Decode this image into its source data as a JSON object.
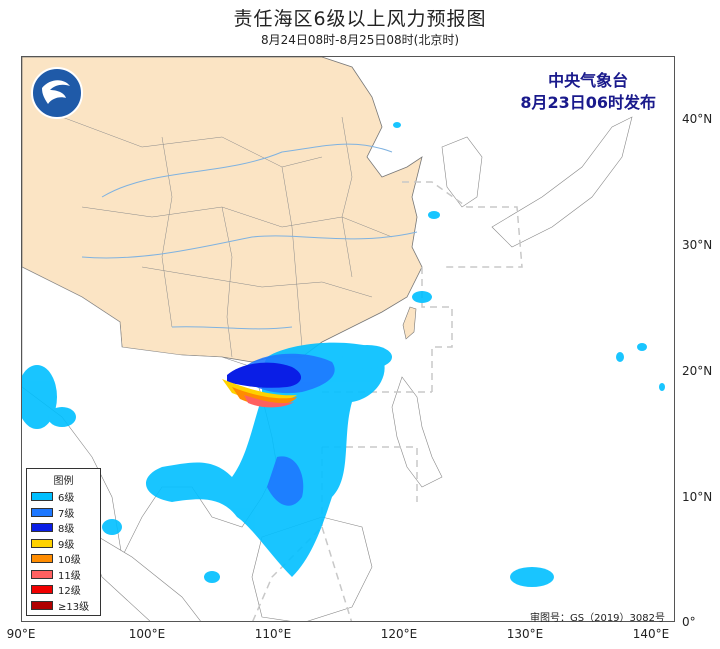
{
  "header": {
    "title": "责任海区6级以上风力预报图",
    "subtitle": "8月24日08时-8月25日08时(北京时)"
  },
  "agency": {
    "name": "中央气象台",
    "issued": "8月23日06时发布"
  },
  "axes": {
    "longitude_labels": [
      "90°E",
      "100°E",
      "110°E",
      "120°E",
      "130°E",
      "140°E"
    ],
    "latitude_labels": [
      "40°N",
      "30°N",
      "20°N",
      "10°N",
      "0°"
    ],
    "lon_range": [
      90,
      142
    ],
    "lat_range": [
      0,
      45
    ]
  },
  "legend": {
    "title": "图例",
    "items": [
      {
        "label": "6级",
        "color": "#00bfff"
      },
      {
        "label": "7级",
        "color": "#1e78ff"
      },
      {
        "label": "8级",
        "color": "#0a1ee6"
      },
      {
        "label": "9级",
        "color": "#ffd200"
      },
      {
        "label": "10级",
        "color": "#ff8c00"
      },
      {
        "label": "11级",
        "color": "#ff6060"
      },
      {
        "label": "12级",
        "color": "#f00000"
      },
      {
        "label": "≥13级",
        "color": "#b00000"
      }
    ]
  },
  "colors": {
    "land_china": "#fbe4c4",
    "land_other": "#ffffff",
    "sea": "#ffffff",
    "border": "#6b6b6b",
    "river": "#7fb2e0",
    "zone_dash": "#c8c8c8"
  },
  "approval_number": "审图号：GS（2019）3082号"
}
